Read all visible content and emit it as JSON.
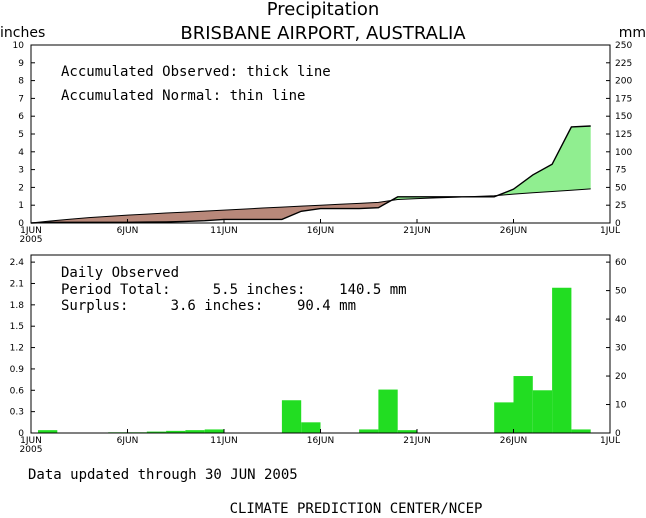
{
  "header": {
    "title": "Precipitation",
    "subtitle": "BRISBANE AIRPORT, AUSTRALIA",
    "left_unit": "inches",
    "right_unit": "mm"
  },
  "annotations": {
    "observed_line": "Accumulated Observed: thick line",
    "normal_line": "Accumulated Normal: thin line",
    "daily_title": "Daily Observed",
    "period_total": "Period Total:     5.5 inches:    140.5 mm",
    "surplus": "Surplus:     3.6 inches:    90.4 mm"
  },
  "footer": {
    "updated": "Data updated through 30 JUN 2005",
    "credit": "CLIMATE PREDICTION CENTER/NCEP"
  },
  "colors": {
    "deficit": "#b8887a",
    "surplus": "#90ee90",
    "bars": "#22dd22",
    "axis": "#000000"
  },
  "chart_data": [
    {
      "type": "area",
      "x_tick_labels": [
        "1JUN",
        "6JUN",
        "11JUN",
        "16JUN",
        "21JUN",
        "26JUN",
        "1JUL"
      ],
      "x_tick_days": [
        1,
        6,
        11,
        16,
        21,
        26,
        31
      ],
      "x_sub_label": "2005",
      "ylabel_left": "inches",
      "ylabel_right": "mm",
      "ylim": [
        0,
        10
      ],
      "ylim_right": [
        0,
        250
      ],
      "y_ticks_left": [
        "0",
        "1",
        "2",
        "3",
        "4",
        "5",
        "6",
        "7",
        "8",
        "9",
        "10"
      ],
      "y_ticks_right": [
        "0",
        "25",
        "50",
        "75",
        "100",
        "125",
        "150",
        "175",
        "200",
        "225",
        "250"
      ],
      "series": [
        {
          "name": "Accumulated Observed",
          "style": "thick",
          "points": [
            [
              1,
              0.0
            ],
            [
              2,
              0.04
            ],
            [
              3,
              0.04
            ],
            [
              4,
              0.04
            ],
            [
              5,
              0.04
            ],
            [
              6,
              0.04
            ],
            [
              7,
              0.05
            ],
            [
              8,
              0.06
            ],
            [
              9,
              0.09
            ],
            [
              10,
              0.13
            ],
            [
              11,
              0.2
            ],
            [
              12,
              0.2
            ],
            [
              13,
              0.2
            ],
            [
              14,
              0.2
            ],
            [
              15,
              0.66
            ],
            [
              16,
              0.81
            ],
            [
              17,
              0.81
            ],
            [
              18,
              0.81
            ],
            [
              19,
              0.86
            ],
            [
              20,
              1.47
            ],
            [
              21,
              1.47
            ],
            [
              22,
              1.47
            ],
            [
              23,
              1.47
            ],
            [
              24,
              1.47
            ],
            [
              25,
              1.47
            ],
            [
              26,
              1.9
            ],
            [
              27,
              2.7
            ],
            [
              28,
              3.3
            ],
            [
              29,
              5.4
            ],
            [
              30,
              5.45
            ]
          ]
        },
        {
          "name": "Accumulated Normal",
          "style": "thin",
          "points": [
            [
              1,
              0.0
            ],
            [
              2,
              0.11
            ],
            [
              3,
              0.21
            ],
            [
              4,
              0.3
            ],
            [
              5,
              0.37
            ],
            [
              6,
              0.44
            ],
            [
              7,
              0.5
            ],
            [
              8,
              0.56
            ],
            [
              9,
              0.61
            ],
            [
              10,
              0.67
            ],
            [
              11,
              0.72
            ],
            [
              12,
              0.78
            ],
            [
              13,
              0.84
            ],
            [
              14,
              0.89
            ],
            [
              15,
              0.95
            ],
            [
              16,
              1.0
            ],
            [
              17,
              1.05
            ],
            [
              18,
              1.1
            ],
            [
              19,
              1.16
            ],
            [
              20,
              1.32
            ],
            [
              21,
              1.37
            ],
            [
              22,
              1.41
            ],
            [
              23,
              1.45
            ],
            [
              24,
              1.49
            ],
            [
              25,
              1.53
            ],
            [
              26,
              1.62
            ],
            [
              27,
              1.7
            ],
            [
              28,
              1.77
            ],
            [
              29,
              1.84
            ],
            [
              30,
              1.92
            ]
          ]
        }
      ]
    },
    {
      "type": "bar",
      "title": "Daily Observed",
      "x_tick_labels": [
        "1JUN",
        "6JUN",
        "11JUN",
        "16JUN",
        "21JUN",
        "26JUN",
        "1JUL"
      ],
      "x_tick_days": [
        1,
        6,
        11,
        16,
        21,
        26,
        31
      ],
      "x_sub_label": "2005",
      "ylim": [
        0,
        2.5
      ],
      "ylim_right": [
        0,
        62.5
      ],
      "y_ticks_left": [
        "0",
        "0.3",
        "0.6",
        "0.9",
        "1.2",
        "1.5",
        "1.8",
        "2.1",
        "2.4"
      ],
      "y_ticks_right": [
        "0",
        "10",
        "20",
        "30",
        "40",
        "50",
        "60"
      ],
      "days": [
        1,
        5,
        6,
        7,
        8,
        9,
        10,
        14,
        15,
        18,
        19,
        20,
        25,
        26,
        27,
        28,
        29
      ],
      "values": [
        0.04,
        0.01,
        0.01,
        0.02,
        0.03,
        0.04,
        0.05,
        0.46,
        0.15,
        0.05,
        0.61,
        0.04,
        0.43,
        0.8,
        0.6,
        2.04,
        0.05
      ]
    }
  ]
}
